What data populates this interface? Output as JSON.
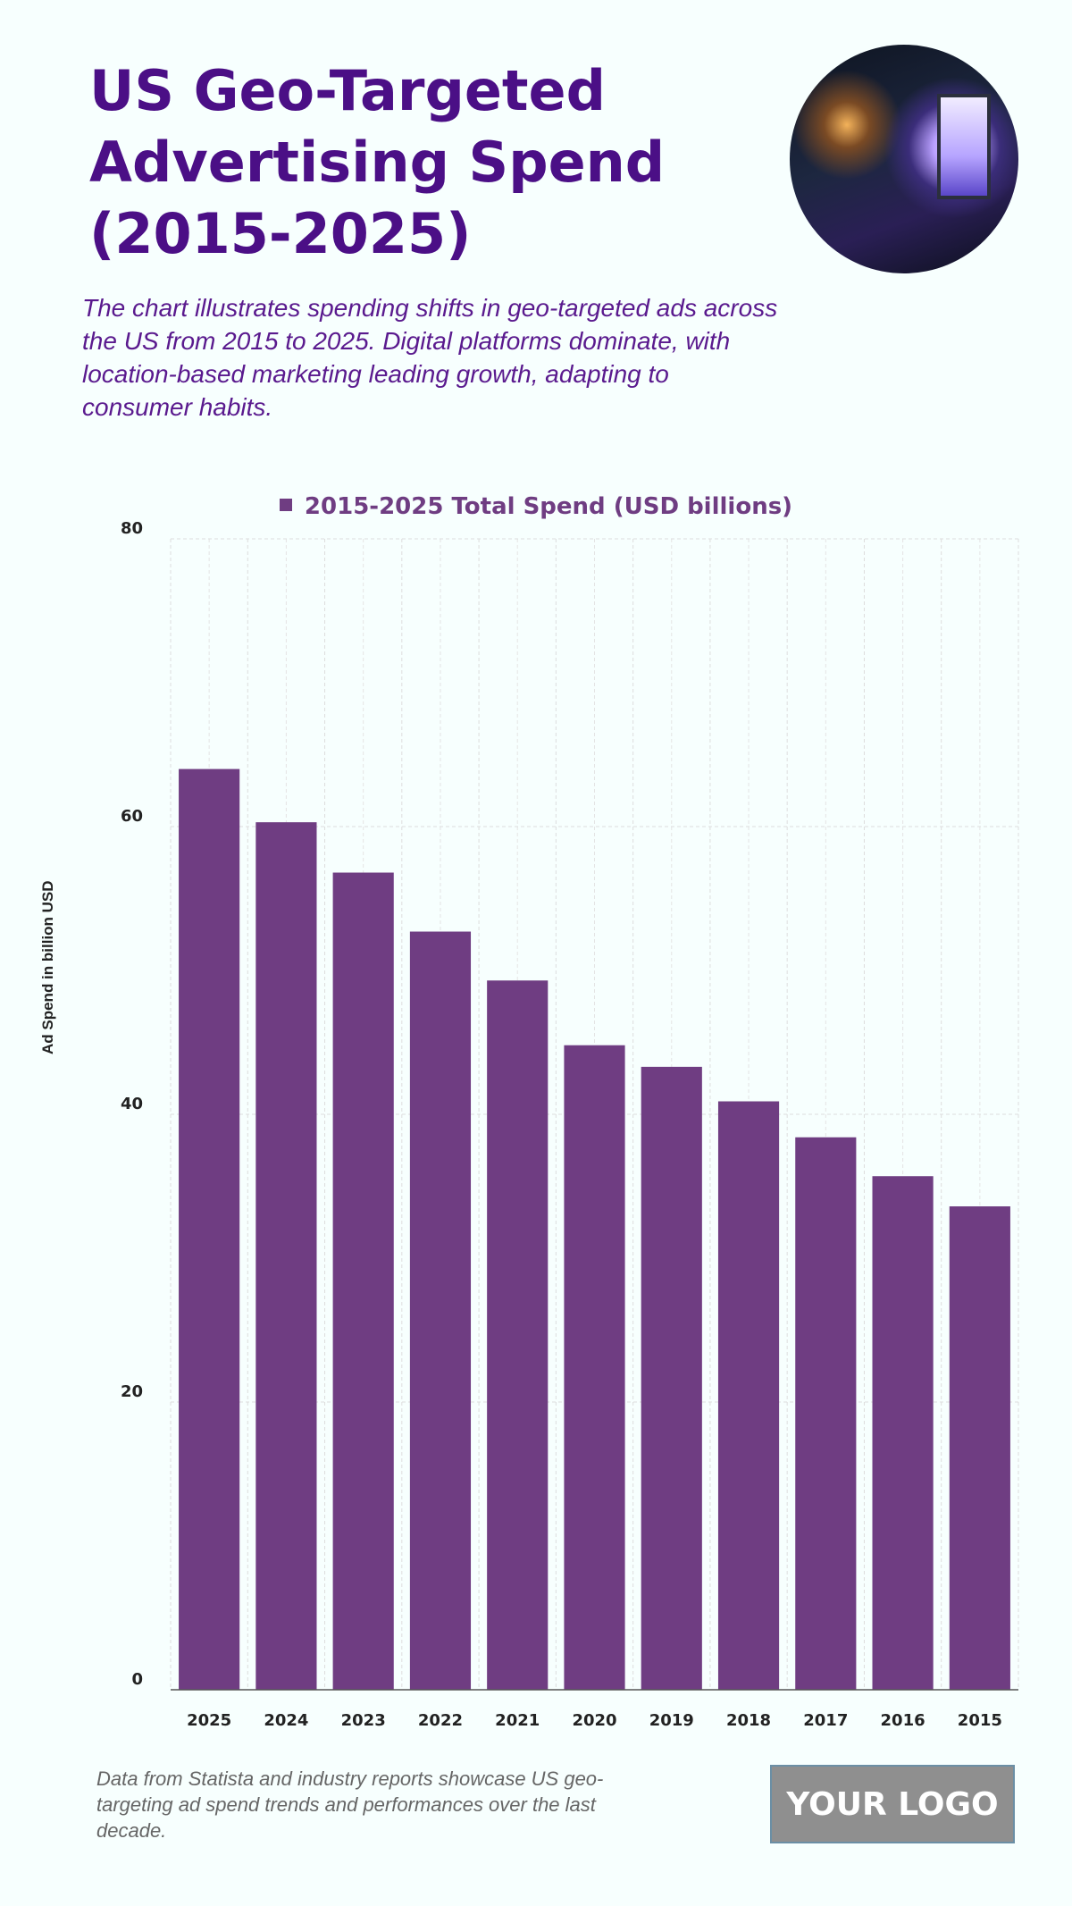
{
  "header": {
    "title": "US Geo-Targeted Advertising Spend (2015-2025)",
    "subtitle": "The chart illustrates spending shifts in geo-targeted ads across the US from 2015 to 2025. Digital platforms dominate, with location-based marketing leading growth, adapting to consumer habits."
  },
  "footer": {
    "note": "Data from Statista and industry reports showcase US geo-targeting ad spend trends and performances over the last decade.",
    "logo": "YOUR LOGO"
  },
  "colors": {
    "bar": "#6f3d82",
    "title": "#4b0f86"
  },
  "chart_data": {
    "type": "bar",
    "title": "",
    "legend": [
      "2015-2025 Total Spend (USD billions)"
    ],
    "legend_position": "top-center",
    "categories": [
      "2025",
      "2024",
      "2023",
      "2022",
      "2021",
      "2020",
      "2019",
      "2018",
      "2017",
      "2016",
      "2015"
    ],
    "values": [
      64.0,
      60.3,
      56.8,
      52.7,
      49.3,
      44.8,
      43.3,
      40.9,
      38.4,
      35.7,
      33.6
    ],
    "xlabel": "",
    "ylabel": "Ad Spend in billion USD",
    "ylim": [
      0,
      80
    ],
    "yticks": [
      "0",
      "20",
      "40",
      "60",
      "80"
    ],
    "grid": true
  }
}
